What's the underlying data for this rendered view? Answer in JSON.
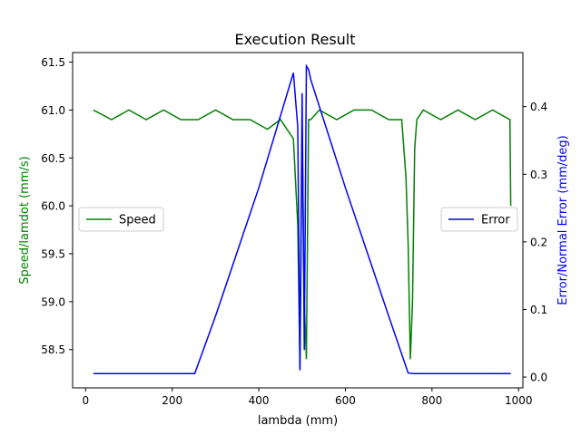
{
  "chart_data": {
    "type": "line",
    "title": "Execution Result",
    "xlabel": "lambda (mm)",
    "y_left_label": "Speed/lamdot (mm/s)",
    "y_right_label": "Error/Normal Error (mm/deg)",
    "xlim": [
      -30,
      1010
    ],
    "ylim_left": [
      58.1,
      61.6
    ],
    "ylim_right": [
      -0.016,
      0.48
    ],
    "x_ticks": [
      0,
      200,
      400,
      600,
      800,
      1000
    ],
    "y_left_ticks": [
      58.5,
      59.0,
      59.5,
      60.0,
      60.5,
      61.0,
      61.5
    ],
    "y_right_ticks": [
      0.0,
      0.1,
      0.2,
      0.3,
      0.4
    ],
    "grid": false,
    "series": [
      {
        "name": "Speed",
        "axis": "left",
        "color": "#008000",
        "x": [
          18,
          60,
          100,
          140,
          180,
          220,
          260,
          300,
          340,
          380,
          420,
          450,
          480,
          490,
          495,
          500,
          505,
          510,
          515,
          520,
          540,
          580,
          620,
          660,
          700,
          730,
          740,
          745,
          750,
          755,
          760,
          765,
          780,
          820,
          860,
          900,
          940,
          980,
          982
        ],
        "y": [
          61.0,
          60.9,
          61.0,
          60.9,
          61.0,
          60.9,
          60.9,
          61.0,
          60.9,
          60.9,
          60.8,
          60.9,
          60.7,
          59.8,
          58.3,
          60.8,
          59.0,
          58.4,
          60.9,
          60.9,
          61.0,
          60.9,
          61.0,
          61.0,
          60.9,
          60.9,
          60.3,
          59.6,
          58.4,
          59.0,
          60.6,
          60.9,
          61.0,
          60.9,
          61.0,
          60.9,
          61.0,
          60.9,
          60.0
        ]
      },
      {
        "name": "Error",
        "axis": "right",
        "color": "#0000ff",
        "x": [
          18,
          100,
          200,
          252,
          300,
          400,
          480,
          490,
          495,
          500,
          505,
          510,
          515,
          520,
          560,
          600,
          700,
          745,
          760,
          800,
          900,
          982
        ],
        "y": [
          0.005,
          0.005,
          0.005,
          0.005,
          0.09,
          0.28,
          0.45,
          0.37,
          0.01,
          0.42,
          0.04,
          0.46,
          0.455,
          0.44,
          0.36,
          0.28,
          0.09,
          0.006,
          0.005,
          0.005,
          0.005,
          0.005
        ]
      }
    ],
    "legends": [
      {
        "label": "Speed",
        "placement": "center-left",
        "color": "#008000"
      },
      {
        "label": "Error",
        "placement": "center-right",
        "color": "#0000ff"
      }
    ]
  }
}
